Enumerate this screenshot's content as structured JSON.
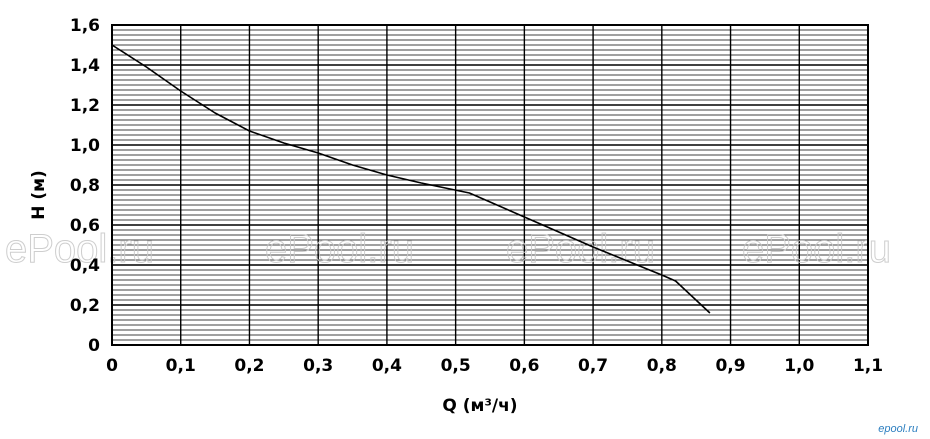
{
  "chart_data": {
    "type": "line",
    "xlabel": "Q (м³/ч)",
    "ylabel": "H (м)",
    "xlim": [
      0,
      1.1
    ],
    "ylim": [
      0,
      1.6
    ],
    "grid": true,
    "x_ticks": [
      "0",
      "0,1",
      "0,2",
      "0,3",
      "0,4",
      "0,5",
      "0,6",
      "0,7",
      "0,8",
      "0,9",
      "1,0",
      "1,1"
    ],
    "y_ticks": [
      "0",
      "0,2",
      "0,4",
      "0,6",
      "0,8",
      "1,0",
      "1,2",
      "1,4",
      "1,6"
    ],
    "series": [
      {
        "x": [
          0,
          0.05,
          0.1,
          0.15,
          0.2,
          0.25,
          0.3,
          0.35,
          0.4,
          0.45,
          0.52,
          0.6,
          0.7,
          0.8,
          0.82,
          0.87
        ],
        "y": [
          1.5,
          1.39,
          1.27,
          1.16,
          1.07,
          1.01,
          0.96,
          0.9,
          0.85,
          0.81,
          0.76,
          0.64,
          0.49,
          0.35,
          0.32,
          0.16
        ]
      }
    ]
  },
  "watermarks": [
    "ePool.ru",
    "ePool.ru",
    "ePool.ru",
    "ePool.ru"
  ],
  "brand": "epool.ru"
}
